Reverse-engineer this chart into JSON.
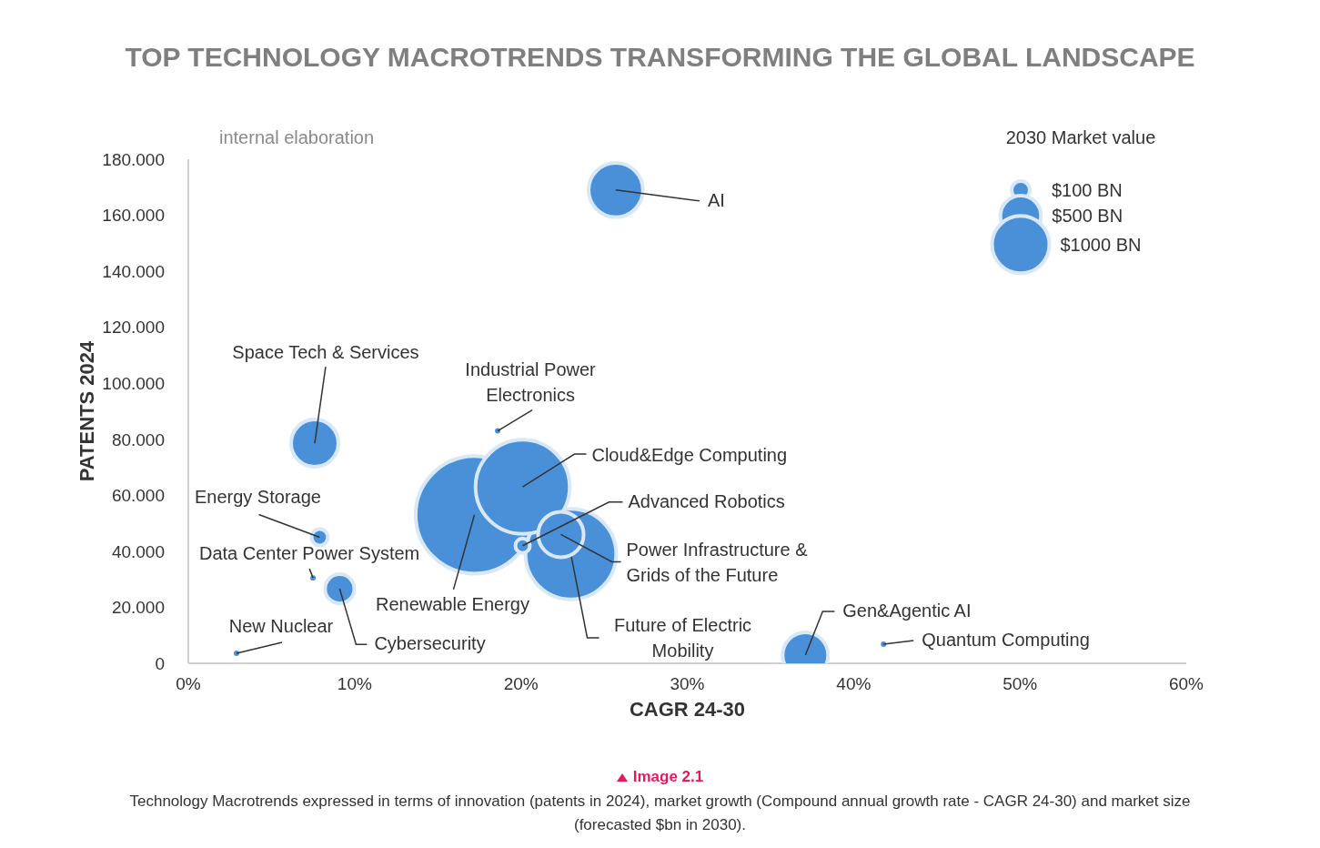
{
  "chart_data": {
    "type": "bubble",
    "title": "TOP TECHNOLOGY MACROTRENDS TRANSFORMING THE GLOBAL LANDSCAPE",
    "xlabel": "CAGR 24-30",
    "ylabel": "PATENTS 2024",
    "legend_title": "2030 Market value",
    "xlim": [
      0,
      60
    ],
    "xticks": [
      {
        "value": 0,
        "label": "0%"
      },
      {
        "value": 10,
        "label": "10%"
      },
      {
        "value": 20,
        "label": "20%"
      },
      {
        "value": 30,
        "label": "30%"
      },
      {
        "value": 40,
        "label": "40%"
      },
      {
        "value": 50,
        "label": "50%"
      },
      {
        "value": 60,
        "label": "60%"
      }
    ],
    "ylim": [
      0,
      180
    ],
    "yticks": [
      0,
      {
        "value": 20,
        "label": "20.000"
      },
      {
        "value": 40,
        "label": "40.000"
      },
      {
        "value": 60,
        "label": "60.000"
      },
      {
        "value": 80,
        "label": "80.000"
      },
      {
        "value": 100,
        "label": "100.000"
      },
      {
        "value": 120,
        "label": "120.000"
      },
      {
        "value": 140,
        "label": "140.000"
      },
      {
        "value": 160,
        "label": "160.000"
      },
      {
        "value": 180,
        "label": "180.000"
      }
    ],
    "grid": false,
    "size_legend": [
      {
        "value": 100,
        "label": "$100 BN"
      },
      {
        "value": 500,
        "label": "$500 BN"
      },
      {
        "value": 1000,
        "label": "$1000 BN"
      }
    ],
    "series": [
      {
        "name": "Renewable Energy",
        "color": "#4a90d9",
        "x": [
          17.2
        ],
        "values": [
          53
        ],
        "sizes": [
          4200
        ]
      },
      {
        "name": "Future of Electric Mobility",
        "color": "#4a90d9",
        "x": [
          23.0
        ],
        "values": [
          39
        ],
        "sizes": [
          2500
        ]
      },
      {
        "name": "Cloud&Edge Computing",
        "color": "#4a90d9",
        "x": [
          20.1
        ],
        "values": [
          63
        ],
        "sizes": [
          2700
        ]
      },
      {
        "name": "Power Infrastructure & Grids of the Future",
        "color": "#4a90d9",
        "x": [
          22.4
        ],
        "values": [
          46
        ],
        "sizes": [
          630
        ]
      },
      {
        "name": "Advanced Robotics",
        "color": "#4a90d9",
        "x": [
          20.1
        ],
        "values": [
          42
        ],
        "sizes": [
          64
        ]
      },
      {
        "name": "AI",
        "color": "#4a90d9",
        "x": [
          25.7
        ],
        "values": [
          169
        ],
        "sizes": [
          900
        ]
      },
      {
        "name": "Space Tech & Services",
        "color": "#4a90d9",
        "x": [
          7.6
        ],
        "values": [
          78.6
        ],
        "sizes": [
          680
        ]
      },
      {
        "name": "Industrial Power Electronics",
        "color": "#4a90d9",
        "x": [
          18.6
        ],
        "values": [
          83
        ],
        "sizes": [
          9
        ]
      },
      {
        "name": "Energy Storage",
        "color": "#4a90d9",
        "x": [
          7.9
        ],
        "values": [
          45
        ],
        "sizes": [
          80
        ]
      },
      {
        "name": "Data Center Power System",
        "color": "#4a90d9",
        "x": [
          7.5
        ],
        "values": [
          30.5
        ],
        "sizes": [
          9
        ]
      },
      {
        "name": "Cybersecurity",
        "color": "#4a90d9",
        "x": [
          9.1
        ],
        "values": [
          26.6
        ],
        "sizes": [
          260
        ]
      },
      {
        "name": "New Nuclear",
        "color": "#4a90d9",
        "x": [
          2.9
        ],
        "values": [
          3.6
        ],
        "sizes": [
          9
        ]
      },
      {
        "name": "Gen&Agentic AI",
        "color": "#4a90d9",
        "x": [
          37.1
        ],
        "values": [
          2.9
        ],
        "sizes": [
          630
        ]
      },
      {
        "name": "Quantum Computing",
        "color": "#4a90d9",
        "x": [
          41.8
        ],
        "values": [
          6.8
        ],
        "sizes": [
          9
        ]
      }
    ],
    "annotations": [
      "internal elaboration",
      "Image 2.1",
      "Technology Macrotrends expressed in terms of innovation (patents in 2024), market growth (Compound annual growth rate - CAGR  24-30) and market size (forecasted $bn in 2030)."
    ]
  }
}
